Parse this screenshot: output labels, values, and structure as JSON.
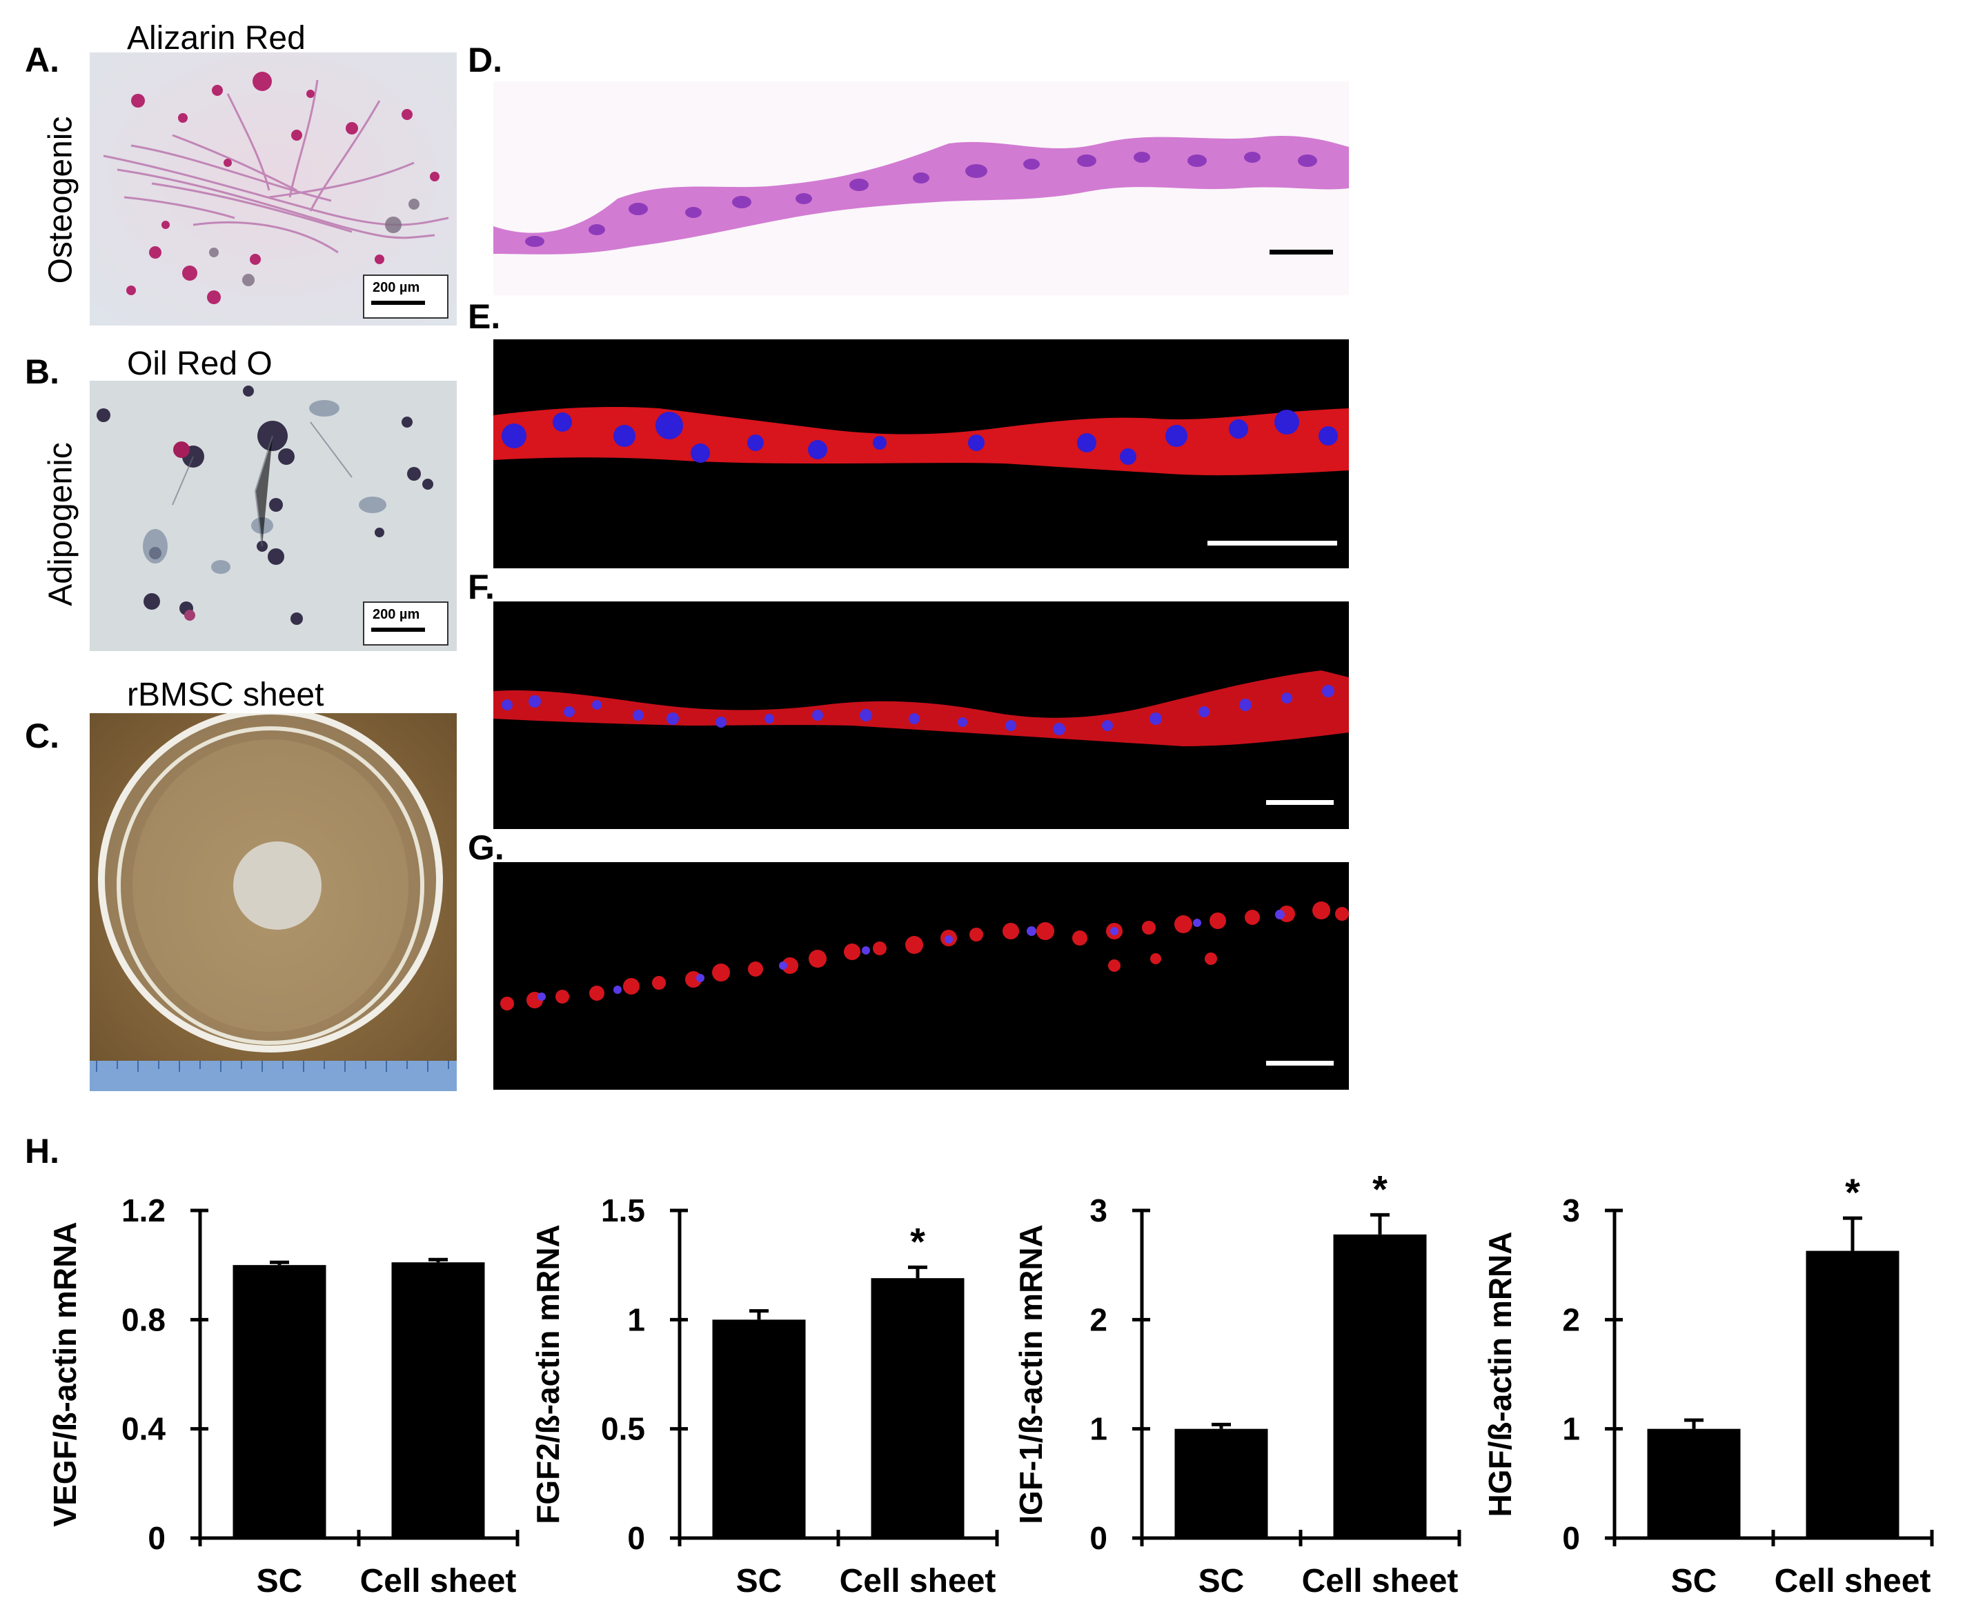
{
  "panels": {
    "A": {
      "letter": "A.",
      "title": "Alizarin Red",
      "side_label": "Osteogenic",
      "scale_label": "200 µm"
    },
    "B": {
      "letter": "B.",
      "title": "Oil Red O",
      "side_label": "Adipogenic",
      "scale_label": "200 µm"
    },
    "C": {
      "letter": "C.",
      "title": "rBMSC sheet"
    },
    "D": {
      "letter": "D."
    },
    "E": {
      "letter": "E."
    },
    "F": {
      "letter": "F."
    },
    "G": {
      "letter": "G."
    },
    "H": {
      "letter": "H."
    }
  },
  "chart_data": [
    {
      "type": "bar",
      "categories": [
        "SC",
        "Cell sheet"
      ],
      "values": [
        1.0,
        1.01
      ],
      "errors": [
        0.01,
        0.01
      ],
      "ylabel": "VEGF/ß-actin mRNA",
      "ylim": [
        0,
        1.2
      ],
      "yticks": [
        0,
        0.4,
        0.8,
        1.2
      ],
      "ytick_labels": [
        "0",
        "0.4",
        "0.8",
        "1.2"
      ],
      "significance": [
        "",
        ""
      ],
      "bar_color": "#000000"
    },
    {
      "type": "bar",
      "categories": [
        "SC",
        "Cell sheet"
      ],
      "values": [
        1.0,
        1.19
      ],
      "errors": [
        0.04,
        0.05
      ],
      "ylabel": "FGF2/ß-actin mRNA",
      "ylim": [
        0,
        1.5
      ],
      "yticks": [
        0,
        0.5,
        1,
        1.5
      ],
      "ytick_labels": [
        "0",
        "0.5",
        "1",
        "1.5"
      ],
      "significance": [
        "",
        "*"
      ],
      "bar_color": "#000000"
    },
    {
      "type": "bar",
      "categories": [
        "SC",
        "Cell sheet"
      ],
      "values": [
        1.0,
        2.78
      ],
      "errors": [
        0.04,
        0.18
      ],
      "ylabel": "IGF-1/ß-actin mRNA",
      "ylim": [
        0,
        3
      ],
      "yticks": [
        0,
        1,
        2,
        3
      ],
      "ytick_labels": [
        "0",
        "1",
        "2",
        "3"
      ],
      "significance": [
        "",
        "*"
      ],
      "bar_color": "#000000"
    },
    {
      "type": "bar",
      "categories": [
        "SC",
        "Cell sheet"
      ],
      "values": [
        1.0,
        2.63
      ],
      "errors": [
        0.08,
        0.3
      ],
      "ylabel": "HGF/ß-actin mRNA",
      "ylim": [
        0,
        3
      ],
      "yticks": [
        0,
        1,
        2,
        3
      ],
      "ytick_labels": [
        "0",
        "1",
        "2",
        "3"
      ],
      "significance": [
        "",
        "*"
      ],
      "bar_color": "#000000"
    }
  ]
}
